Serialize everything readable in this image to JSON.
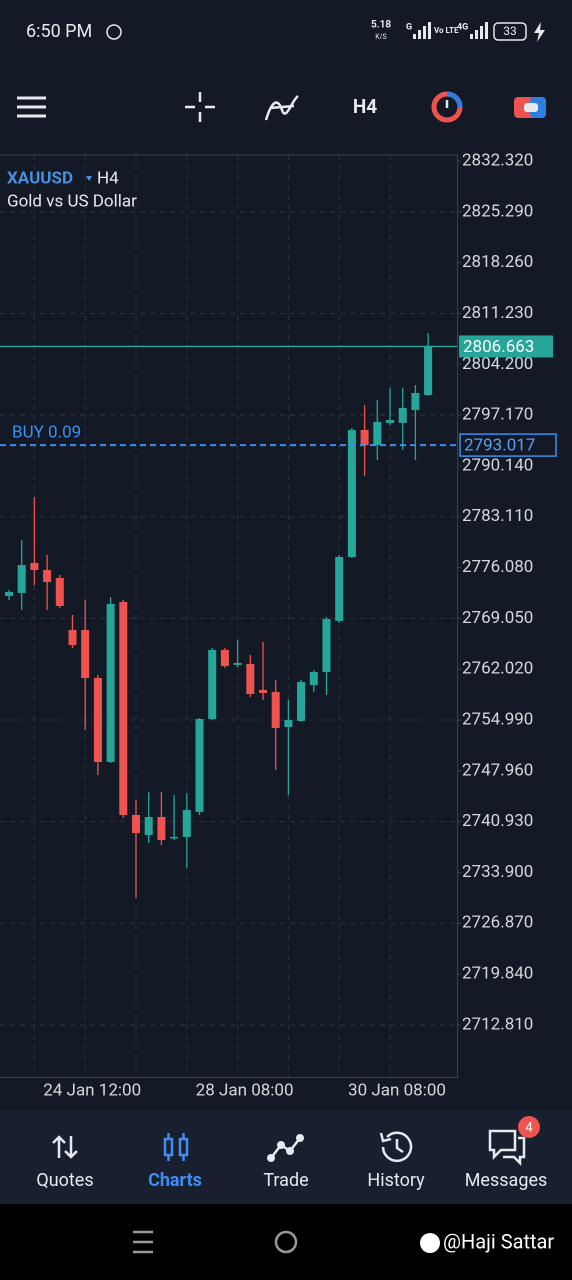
{
  "status_bar": {
    "time": "6:50 PM",
    "speed": "5.18",
    "speed_unit": "K/S",
    "signals": [
      "G",
      "Vo LTE",
      "4G"
    ],
    "battery": "33"
  },
  "toolbar": {
    "timeframe": "H4"
  },
  "chart_data": {
    "type": "candlestick",
    "symbol": "XAUUSD",
    "timeframe": "H4",
    "description": "Gold vs US Dollar",
    "categories": [
      null,
      null,
      null,
      null,
      null,
      null,
      "24 Jan 12:00",
      null,
      null,
      null,
      null,
      null,
      null,
      null,
      null,
      null,
      null,
      null,
      "28 Jan 08:00",
      null,
      null,
      null,
      null,
      null,
      null,
      null,
      null,
      null,
      null,
      null,
      "30 Jan 08:00",
      null,
      null,
      null
    ],
    "open": [
      2772.15,
      2772.56,
      2776.71,
      2775.74,
      2774.64,
      2767.44,
      2767.44,
      2760.8,
      2749.18,
      2771.32,
      2741.85,
      2739.08,
      2741.57,
      2738.67,
      2738.81,
      2742.27,
      2755.13,
      2764.68,
      2762.6,
      2762.74,
      2759.14,
      2758.87,
      2754.02,
      2754.85,
      2759.83,
      2761.63,
      2768.69,
      2777.54,
      2795.11,
      2793.03,
      2796.08,
      2796.08,
      2797.88,
      2799.95
    ],
    "high": [
      2772.98,
      2779.89,
      2785.84,
      2777.82,
      2775.05,
      2769.52,
      2771.59,
      2761.22,
      2772.01,
      2771.59,
      2743.93,
      2745.03,
      2745.03,
      2744.62,
      2744.89,
      2755.27,
      2764.95,
      2764.95,
      2766.06,
      2763.98,
      2765.78,
      2760.53,
      2757.76,
      2760.53,
      2761.91,
      2769.24,
      2777.82,
      2795.39,
      2798.57,
      2799.26,
      2800.92,
      2800.92,
      2801.33,
      2808.53
    ],
    "low": [
      2771.59,
      2770.21,
      2773.67,
      2770.21,
      2770.49,
      2764.95,
      2753.61,
      2747.38,
      2749.04,
      2741.44,
      2730.37,
      2737.98,
      2737.7,
      2738.39,
      2734.52,
      2741.85,
      2754.99,
      2762.19,
      2762.32,
      2758.17,
      2757.76,
      2748.08,
      2744.62,
      2754.72,
      2758.87,
      2758.45,
      2768.41,
      2777.4,
      2788.75,
      2790.96,
      2795.8,
      2792.34,
      2790.96,
      2799.81
    ],
    "close": [
      2772.7,
      2776.43,
      2775.74,
      2774.08,
      2770.76,
      2765.37,
      2760.8,
      2749.18,
      2771.04,
      2741.85,
      2739.36,
      2741.57,
      2738.39,
      2738.81,
      2742.54,
      2755.13,
      2764.68,
      2762.46,
      2762.88,
      2758.59,
      2758.73,
      2753.89,
      2754.99,
      2760.25,
      2761.63,
      2768.96,
      2777.54,
      2795.11,
      2793.03,
      2796.22,
      2796.49,
      2798.15,
      2800.23,
      2806.66
    ],
    "up_color": "#26a69a",
    "down_color": "#ef5350",
    "ylim": [
      2705.6,
      2833.15
    ],
    "yticks": [
      {
        "value": 2832.32,
        "label": "2832.320"
      },
      {
        "value": 2825.29,
        "label": "2825.290"
      },
      {
        "value": 2818.26,
        "label": "2818.260"
      },
      {
        "value": 2811.23,
        "label": "2811.230"
      },
      {
        "value": 2804.2,
        "label": "2804.200"
      },
      {
        "value": 2797.17,
        "label": "2797.170"
      },
      {
        "value": 2790.14,
        "label": "2790.140"
      },
      {
        "value": 2783.11,
        "label": "2783.110"
      },
      {
        "value": 2776.08,
        "label": "2776.080"
      },
      {
        "value": 2769.05,
        "label": "2769.050"
      },
      {
        "value": 2762.02,
        "label": "2762.020"
      },
      {
        "value": 2754.99,
        "label": "2754.990"
      },
      {
        "value": 2747.96,
        "label": "2747.960"
      },
      {
        "value": 2740.93,
        "label": "2740.930"
      },
      {
        "value": 2733.9,
        "label": "2733.900"
      },
      {
        "value": 2726.87,
        "label": "2726.870"
      },
      {
        "value": 2719.84,
        "label": "2719.840"
      },
      {
        "value": 2712.81,
        "label": "2712.810"
      }
    ],
    "grid": true,
    "bid": 2806.663,
    "position": {
      "label": "BUY 0.09",
      "value": 2793.017
    }
  },
  "nav": [
    {
      "label": "Quotes"
    },
    {
      "label": "Charts"
    },
    {
      "label": "Trade"
    },
    {
      "label": "History"
    },
    {
      "label": "Messages"
    }
  ],
  "messages_badge": "4",
  "watermark": "@Haji Sattar"
}
